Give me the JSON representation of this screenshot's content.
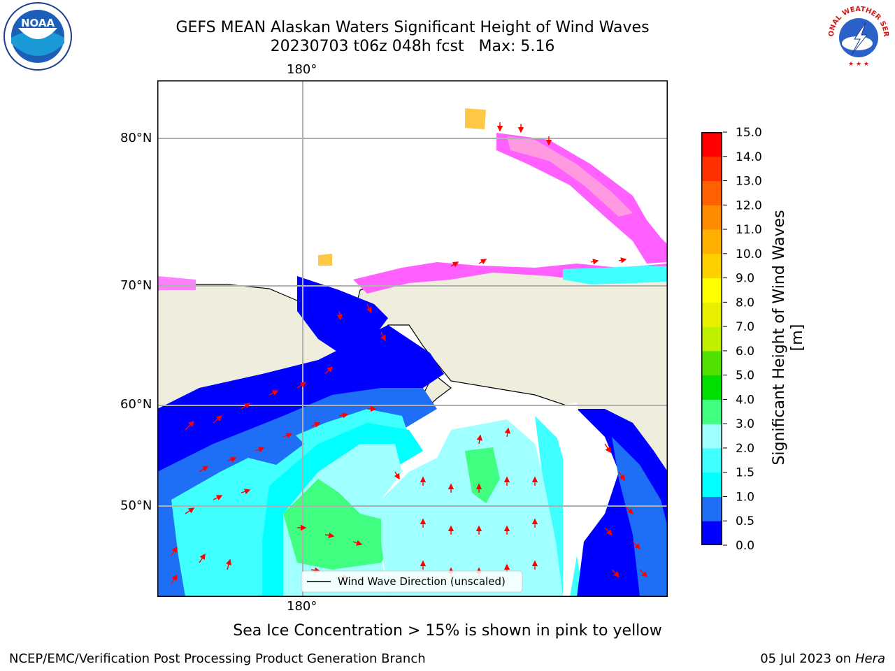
{
  "title": {
    "line1": "GEFS MEAN Alaskan Waters Significant Height of Wind Waves",
    "line2": "20230703 t06z 048h fcst   Max: 5.16"
  },
  "map": {
    "lon_label_top": "180°",
    "lon_label_bottom": "180°",
    "lat_labels": [
      "80°N",
      "70°N",
      "60°N",
      "50°N"
    ],
    "legend_label": "Wind Wave Direction (unscaled)",
    "colors": {
      "land": "#efeddc",
      "grid": "#b0b0b0",
      "arrow": "#ff0000"
    }
  },
  "colorbar": {
    "label": "Significant Height of Wind Waves [m]",
    "ticks": [
      "0.0",
      "0.5",
      "1.0",
      "1.5",
      "2.0",
      "3.0",
      "4.0",
      "5.0",
      "6.0",
      "7.0",
      "8.0",
      "9.0",
      "10.0",
      "11.0",
      "12.0",
      "13.0",
      "14.0",
      "15.0"
    ],
    "colors": [
      "#0000ff",
      "#1e6ff5",
      "#00ffff",
      "#40ffff",
      "#a0ffff",
      "#40ff80",
      "#00e000",
      "#50e000",
      "#c0f000",
      "#e8f000",
      "#ffff00",
      "#ffd000",
      "#ffb000",
      "#ff8c00",
      "#ff6000",
      "#ff3000",
      "#ff0000"
    ]
  },
  "note": "Sea Ice Concentration > 15% is shown in pink to yellow",
  "footer": {
    "left": "NCEP/EMC/Verification Post Processing Product Generation Branch",
    "right_date": "05 Jul 2023 on ",
    "right_machine": "Hera"
  },
  "logos": {
    "noaa_text": "NOAA",
    "nws_text": "NATIONAL WEATHER SERVICE"
  }
}
